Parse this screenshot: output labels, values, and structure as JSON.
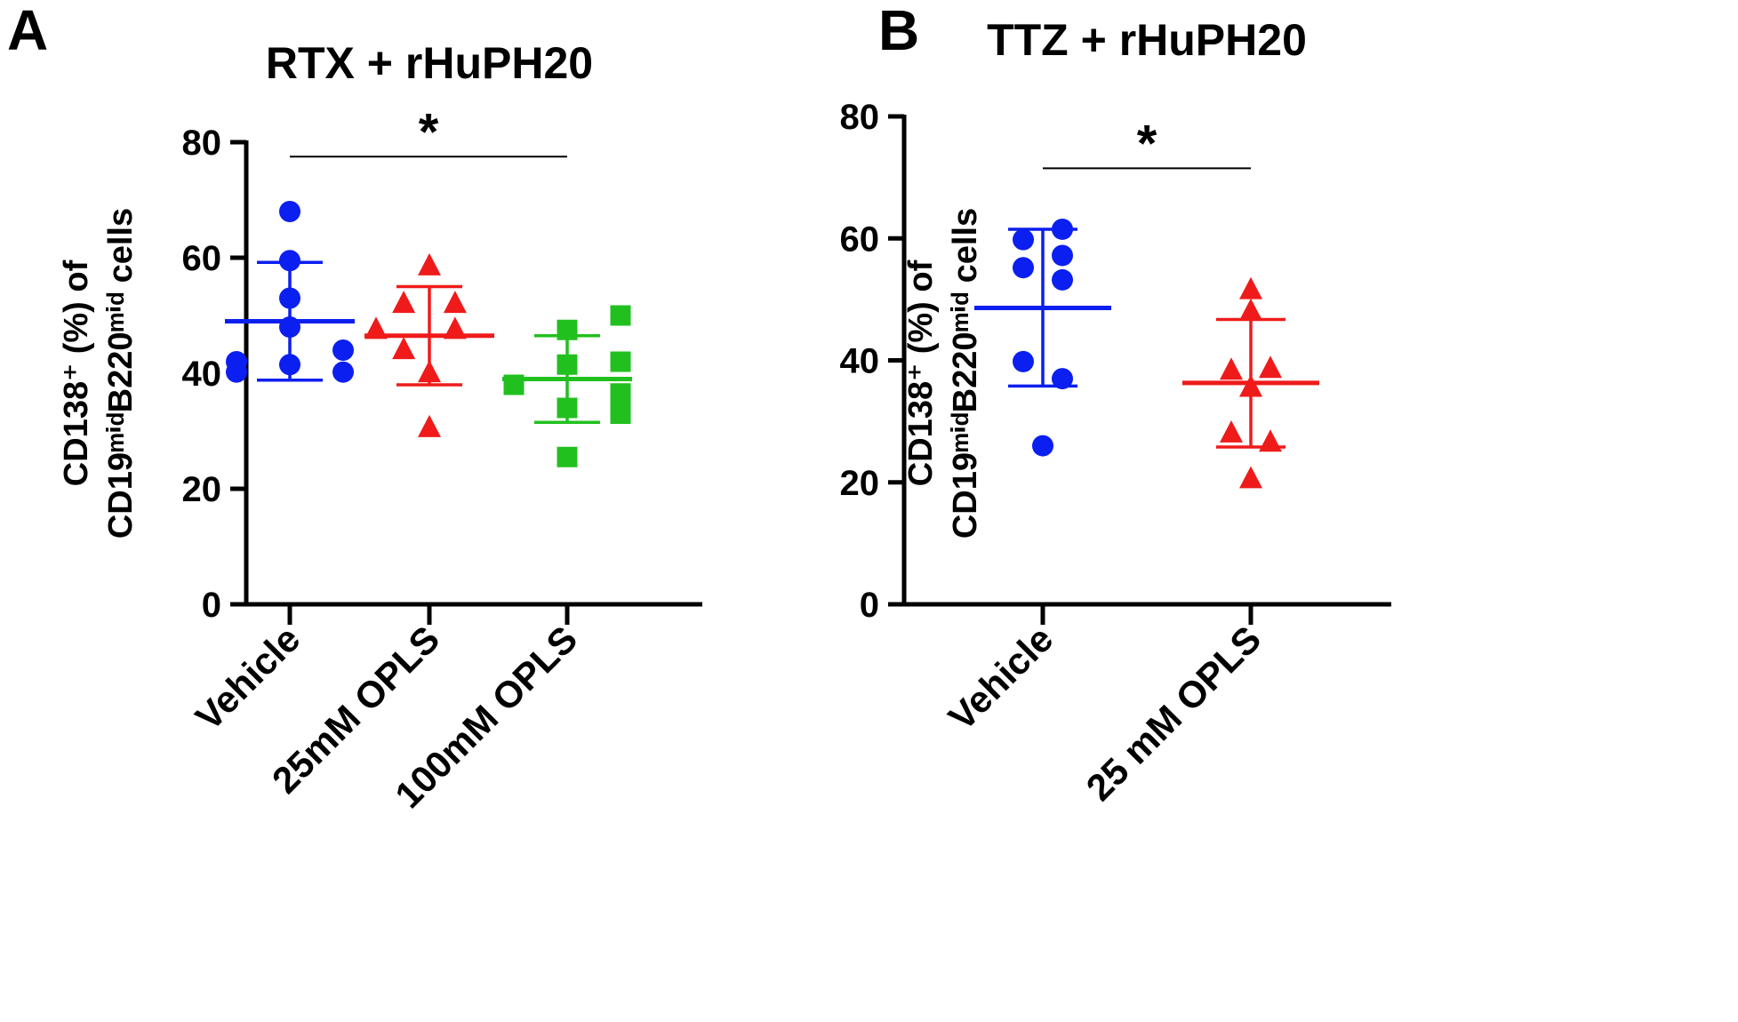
{
  "chart_data": [
    {
      "type": "scatter",
      "panel": "A",
      "title": "RTX + rHuPH20",
      "xlabel": "",
      "ylabel_line1": "CD138⁺ (%) of",
      "ylabel_line2": "CD19ᵐⁱᵈB220ᵐⁱᵈ cells",
      "ylim": [
        0,
        80
      ],
      "yticks": [
        0,
        20,
        40,
        60,
        80
      ],
      "categories": [
        "Vehicle",
        "25mM OPLS",
        "100mM OPLS"
      ],
      "series": [
        {
          "name": "Vehicle",
          "marker": "circle",
          "color": "#0b1ff0",
          "mean": 49,
          "sd_low": 38.8,
          "sd_high": 59.2,
          "points": [
            {
              "dx": 0.0,
              "y": 68
            },
            {
              "dx": 0.0,
              "y": 59.5
            },
            {
              "dx": 0.0,
              "y": 53
            },
            {
              "dx": -0.27,
              "y": 40.2
            },
            {
              "dx": 0.0,
              "y": 41.5
            },
            {
              "dx": 0.27,
              "y": 40.2
            },
            {
              "dx": -0.27,
              "y": 42
            },
            {
              "dx": 0.27,
              "y": 44
            },
            {
              "dx": 0.0,
              "y": 48
            }
          ]
        },
        {
          "name": "25mM OPLS",
          "marker": "triangle",
          "color": "#ef1b1b",
          "mean": 46.5,
          "sd_low": 38,
          "sd_high": 55,
          "points": [
            {
              "dx": 0.0,
              "y": 58.5
            },
            {
              "dx": -0.13,
              "y": 52
            },
            {
              "dx": 0.13,
              "y": 52
            },
            {
              "dx": -0.27,
              "y": 47.5
            },
            {
              "dx": 0.13,
              "y": 47.5
            },
            {
              "dx": -0.13,
              "y": 44
            },
            {
              "dx": 0.0,
              "y": 40
            },
            {
              "dx": 0.0,
              "y": 30.5
            }
          ]
        },
        {
          "name": "100mM OPLS",
          "marker": "square",
          "color": "#22c01f",
          "mean": 39,
          "sd_low": 31.5,
          "sd_high": 46.5,
          "points": [
            {
              "dx": 0.27,
              "y": 50
            },
            {
              "dx": 0.0,
              "y": 47.5
            },
            {
              "dx": 0.27,
              "y": 42
            },
            {
              "dx": 0.0,
              "y": 41.5
            },
            {
              "dx": -0.27,
              "y": 38
            },
            {
              "dx": 0.27,
              "y": 36.5
            },
            {
              "dx": 0.0,
              "y": 34
            },
            {
              "dx": 0.27,
              "y": 33
            },
            {
              "dx": 0.0,
              "y": 25.5
            }
          ]
        }
      ],
      "significance": [
        {
          "from": 0,
          "to": 2,
          "y": 77.5,
          "label": "*"
        }
      ]
    },
    {
      "type": "scatter",
      "panel": "B",
      "title": "TTZ + rHuPH20",
      "xlabel": "",
      "ylabel_line1": "CD138⁺ (%) of",
      "ylabel_line2": "CD19ᵐⁱᵈB220ᵐⁱᵈ cells",
      "ylim": [
        0,
        80
      ],
      "yticks": [
        0,
        20,
        40,
        60,
        80
      ],
      "categories": [
        "Vehicle",
        "25 mM OPLS"
      ],
      "series": [
        {
          "name": "Vehicle",
          "marker": "circle",
          "color": "#0b1ff0",
          "mean": 48.6,
          "sd_low": 35.8,
          "sd_high": 61.5,
          "points": [
            {
              "dx": -0.2,
              "y": 59.8
            },
            {
              "dx": 0.2,
              "y": 61.5
            },
            {
              "dx": -0.2,
              "y": 55.2
            },
            {
              "dx": 0.2,
              "y": 57.2
            },
            {
              "dx": 0.2,
              "y": 53.2
            },
            {
              "dx": -0.2,
              "y": 39.8
            },
            {
              "dx": 0.2,
              "y": 37
            },
            {
              "dx": 0.0,
              "y": 26
            }
          ]
        },
        {
          "name": "25 mM OPLS",
          "marker": "triangle",
          "color": "#ef1b1b",
          "mean": 36.3,
          "sd_low": 25.8,
          "sd_high": 46.7,
          "points": [
            {
              "dx": 0.0,
              "y": 51.5
            },
            {
              "dx": 0.0,
              "y": 48
            },
            {
              "dx": -0.2,
              "y": 38.3
            },
            {
              "dx": 0.2,
              "y": 38.6
            },
            {
              "dx": 0.0,
              "y": 35.5
            },
            {
              "dx": -0.2,
              "y": 28
            },
            {
              "dx": 0.2,
              "y": 26.5
            },
            {
              "dx": 0.0,
              "y": 20.5
            }
          ]
        }
      ],
      "significance": [
        {
          "from": 0,
          "to": 1,
          "y": 71.5,
          "label": "*"
        }
      ]
    }
  ]
}
